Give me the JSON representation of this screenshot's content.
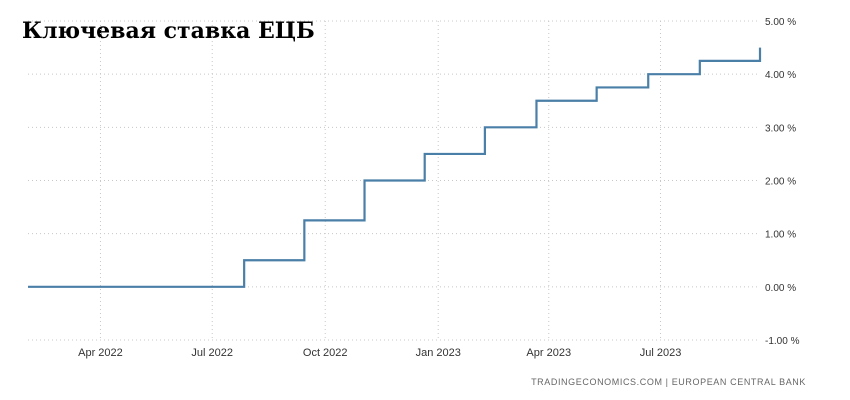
{
  "chart_data": {
    "type": "line",
    "step": true,
    "title": "Ключевая ставка ЕЦБ",
    "source": "TRADINGECONOMICS.COM  |  EUROPEAN CENTRAL BANK",
    "xlabel": "",
    "ylabel": "",
    "x_tick_labels": [
      "Apr 2022",
      "Jul 2022",
      "Oct 2022",
      "Jan 2023",
      "Apr 2023",
      "Jul 2023"
    ],
    "y_tick_labels": [
      "5.00 %",
      "4.00 %",
      "3.00 %",
      "2.00 %",
      "1.00 %",
      "0.00 %",
      "-1.00 %"
    ],
    "ylim": [
      -1,
      5
    ],
    "xlim": [
      "2022-02-01",
      "2023-09-20"
    ],
    "grid": true,
    "line_color": "#4a7fa8",
    "series": [
      {
        "x": [
          "2022-02-01",
          "2022-07-27",
          "2022-09-14",
          "2022-11-02",
          "2022-12-21",
          "2023-02-08",
          "2023-03-22",
          "2023-05-10",
          "2023-06-21",
          "2023-08-02",
          "2023-09-20"
        ],
        "y": [
          0.0,
          0.5,
          1.25,
          2.0,
          2.5,
          3.0,
          3.5,
          3.75,
          4.0,
          4.25,
          4.5
        ]
      }
    ]
  }
}
